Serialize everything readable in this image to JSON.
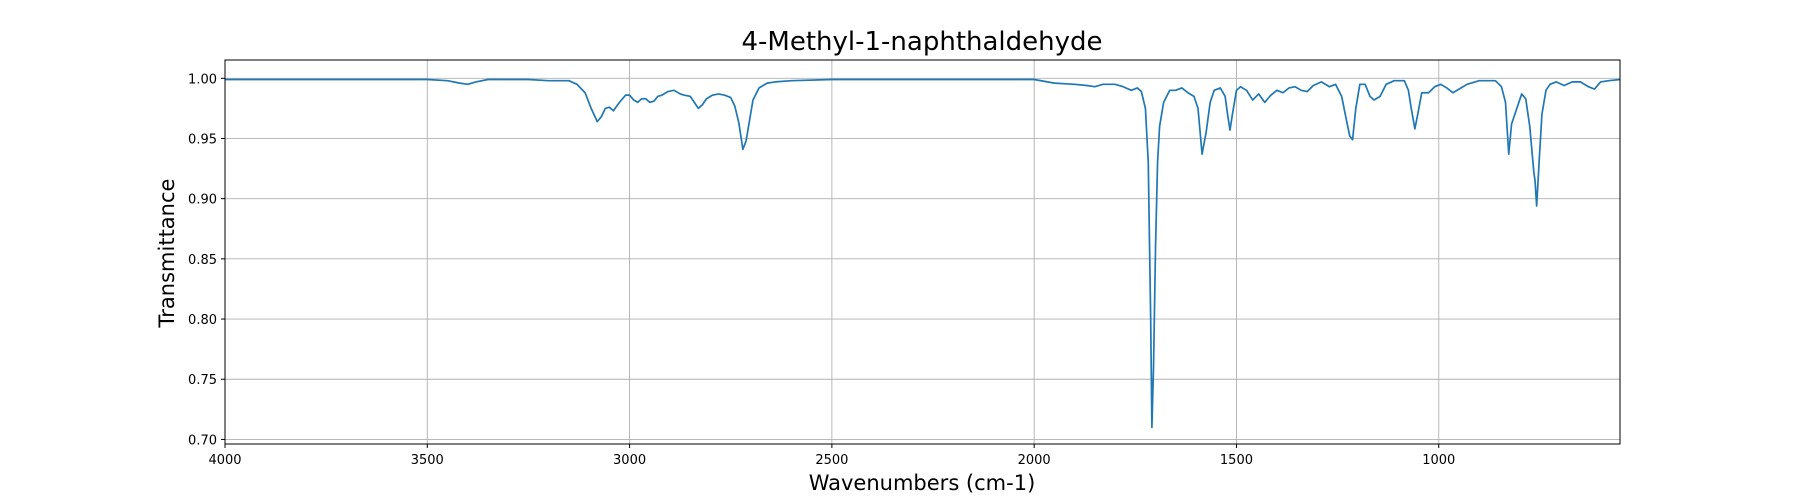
{
  "chart_data": {
    "type": "line",
    "title": "4-Methyl-1-naphthaldehyde",
    "x_label": "Wavenumbers (cm-1)",
    "y_label": "Transmittance",
    "color": "#1f77b4",
    "grid": true,
    "x_reversed": true,
    "xlim": [
      4000,
      552
    ],
    "ylim": [
      0.6962,
      1.0152
    ],
    "xticks": [
      4000,
      3500,
      3000,
      2500,
      2000,
      1500,
      1000
    ],
    "yticks": [
      {
        "value": 0.7,
        "label": "0.70"
      },
      0.75,
      {
        "value": 0.8,
        "label": "0.80"
      },
      0.85,
      {
        "value": 0.9,
        "label": "0.90"
      },
      0.95,
      {
        "value": 1.0,
        "label": "1.00"
      }
    ],
    "x": [
      4000,
      3900,
      3800,
      3700,
      3600,
      3500,
      3450,
      3420,
      3400,
      3380,
      3350,
      3300,
      3250,
      3200,
      3150,
      3130,
      3110,
      3095,
      3080,
      3070,
      3060,
      3050,
      3040,
      3025,
      3010,
      3000,
      2990,
      2980,
      2970,
      2960,
      2950,
      2940,
      2930,
      2920,
      2905,
      2890,
      2875,
      2865,
      2850,
      2840,
      2830,
      2820,
      2810,
      2795,
      2780,
      2765,
      2750,
      2740,
      2730,
      2720,
      2712,
      2705,
      2695,
      2680,
      2660,
      2640,
      2600,
      2500,
      2400,
      2300,
      2200,
      2100,
      2000,
      1950,
      1900,
      1870,
      1850,
      1830,
      1800,
      1780,
      1760,
      1745,
      1735,
      1725,
      1718,
      1712,
      1709,
      1705,
      1700,
      1695,
      1690,
      1680,
      1665,
      1650,
      1635,
      1620,
      1605,
      1595,
      1585,
      1575,
      1565,
      1555,
      1540,
      1528,
      1522,
      1516,
      1510,
      1500,
      1490,
      1475,
      1460,
      1445,
      1430,
      1415,
      1400,
      1385,
      1370,
      1355,
      1340,
      1325,
      1310,
      1290,
      1270,
      1255,
      1240,
      1228,
      1220,
      1213,
      1205,
      1195,
      1182,
      1170,
      1160,
      1145,
      1130,
      1110,
      1085,
      1075,
      1068,
      1059,
      1052,
      1042,
      1025,
      1010,
      995,
      980,
      965,
      950,
      930,
      900,
      860,
      845,
      835,
      827,
      820,
      805,
      795,
      785,
      775,
      765,
      762,
      758,
      752,
      745,
      735,
      725,
      710,
      690,
      670,
      650,
      630,
      615,
      600,
      580,
      552
    ],
    "values": [
      0.999,
      0.999,
      0.999,
      0.999,
      0.999,
      0.999,
      0.998,
      0.996,
      0.995,
      0.997,
      0.999,
      0.999,
      0.999,
      0.998,
      0.998,
      0.995,
      0.988,
      0.975,
      0.964,
      0.968,
      0.975,
      0.976,
      0.973,
      0.98,
      0.986,
      0.986,
      0.982,
      0.98,
      0.983,
      0.983,
      0.98,
      0.981,
      0.985,
      0.986,
      0.989,
      0.99,
      0.987,
      0.986,
      0.985,
      0.98,
      0.975,
      0.978,
      0.983,
      0.986,
      0.987,
      0.986,
      0.984,
      0.977,
      0.963,
      0.941,
      0.948,
      0.962,
      0.982,
      0.992,
      0.996,
      0.997,
      0.998,
      0.999,
      0.999,
      0.999,
      0.999,
      0.999,
      0.999,
      0.996,
      0.995,
      0.994,
      0.993,
      0.995,
      0.995,
      0.993,
      0.99,
      0.992,
      0.989,
      0.975,
      0.93,
      0.8,
      0.71,
      0.76,
      0.86,
      0.93,
      0.96,
      0.98,
      0.99,
      0.99,
      0.992,
      0.988,
      0.985,
      0.975,
      0.937,
      0.955,
      0.98,
      0.99,
      0.992,
      0.985,
      0.97,
      0.957,
      0.97,
      0.99,
      0.993,
      0.99,
      0.982,
      0.987,
      0.98,
      0.986,
      0.99,
      0.988,
      0.992,
      0.993,
      0.99,
      0.989,
      0.994,
      0.997,
      0.993,
      0.995,
      0.985,
      0.965,
      0.952,
      0.949,
      0.975,
      0.995,
      0.995,
      0.985,
      0.982,
      0.985,
      0.995,
      0.998,
      0.998,
      0.99,
      0.975,
      0.958,
      0.97,
      0.988,
      0.988,
      0.993,
      0.995,
      0.992,
      0.988,
      0.991,
      0.995,
      0.998,
      0.998,
      0.993,
      0.98,
      0.937,
      0.962,
      0.977,
      0.987,
      0.983,
      0.96,
      0.922,
      0.915,
      0.894,
      0.93,
      0.97,
      0.99,
      0.995,
      0.997,
      0.994,
      0.997,
      0.997,
      0.993,
      0.991,
      0.997,
      0.998,
      0.999
    ]
  }
}
